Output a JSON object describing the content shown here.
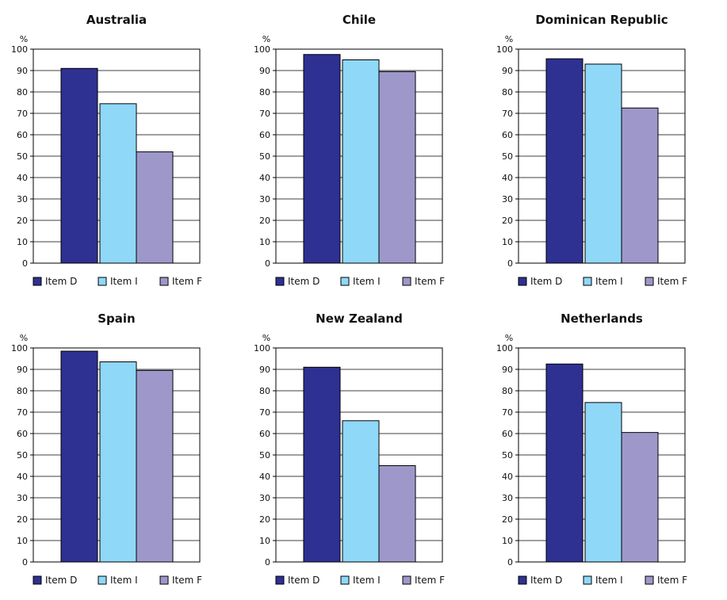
{
  "legend_labels": [
    "Item D",
    "Item I",
    "Item F"
  ],
  "colors": {
    "Item D": "#2e3192",
    "Item I": "#8fd8f8",
    "Item F": "#9e98ca",
    "gridline": "#000000",
    "axis": "#000000"
  },
  "chart_data": [
    {
      "type": "bar",
      "title": "Australia",
      "ylabel": "%",
      "ylim": [
        0,
        100
      ],
      "yticks": [
        0,
        10,
        20,
        30,
        40,
        50,
        60,
        70,
        80,
        90,
        100
      ],
      "grid": true,
      "legend_placement": "bottom",
      "series": [
        {
          "name": "Item D",
          "values": [
            91
          ]
        },
        {
          "name": "Item I",
          "values": [
            74.5
          ]
        },
        {
          "name": "Item F",
          "values": [
            52
          ]
        }
      ]
    },
    {
      "type": "bar",
      "title": "Chile",
      "ylabel": "%",
      "ylim": [
        0,
        100
      ],
      "yticks": [
        0,
        10,
        20,
        30,
        40,
        50,
        60,
        70,
        80,
        90,
        100
      ],
      "grid": true,
      "legend_placement": "bottom",
      "series": [
        {
          "name": "Item D",
          "values": [
            97.5
          ]
        },
        {
          "name": "Item I",
          "values": [
            95
          ]
        },
        {
          "name": "Item F",
          "values": [
            89.5
          ]
        }
      ]
    },
    {
      "type": "bar",
      "title": "Dominican Republic",
      "ylabel": "%",
      "ylim": [
        0,
        100
      ],
      "yticks": [
        0,
        10,
        20,
        30,
        40,
        50,
        60,
        70,
        80,
        90,
        100
      ],
      "grid": true,
      "legend_placement": "bottom",
      "series": [
        {
          "name": "Item D",
          "values": [
            95.5
          ]
        },
        {
          "name": "Item I",
          "values": [
            93
          ]
        },
        {
          "name": "Item F",
          "values": [
            72.5
          ]
        }
      ]
    },
    {
      "type": "bar",
      "title": "Spain",
      "ylabel": "%",
      "ylim": [
        0,
        100
      ],
      "yticks": [
        0,
        10,
        20,
        30,
        40,
        50,
        60,
        70,
        80,
        90,
        100
      ],
      "grid": true,
      "legend_placement": "bottom",
      "series": [
        {
          "name": "Item D",
          "values": [
            98.5
          ]
        },
        {
          "name": "Item I",
          "values": [
            93.5
          ]
        },
        {
          "name": "Item F",
          "values": [
            89.5
          ]
        }
      ]
    },
    {
      "type": "bar",
      "title": "New Zealand",
      "ylabel": "%",
      "ylim": [
        0,
        100
      ],
      "yticks": [
        0,
        10,
        20,
        30,
        40,
        50,
        60,
        70,
        80,
        90,
        100
      ],
      "grid": true,
      "legend_placement": "bottom",
      "series": [
        {
          "name": "Item D",
          "values": [
            91
          ]
        },
        {
          "name": "Item I",
          "values": [
            66
          ]
        },
        {
          "name": "Item F",
          "values": [
            45
          ]
        }
      ]
    },
    {
      "type": "bar",
      "title": "Netherlands",
      "ylabel": "%",
      "ylim": [
        0,
        100
      ],
      "yticks": [
        0,
        10,
        20,
        30,
        40,
        50,
        60,
        70,
        80,
        90,
        100
      ],
      "grid": true,
      "legend_placement": "bottom",
      "series": [
        {
          "name": "Item D",
          "values": [
            92.5
          ]
        },
        {
          "name": "Item I",
          "values": [
            74.5
          ]
        },
        {
          "name": "Item F",
          "values": [
            60.5
          ]
        }
      ]
    }
  ]
}
